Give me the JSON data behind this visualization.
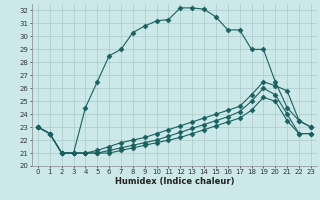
{
  "xlabel": "Humidex (Indice chaleur)",
  "bg_color": "#cce8e8",
  "grid_color": "#aacccc",
  "line_color": "#1a6060",
  "xlim": [
    -0.5,
    23.5
  ],
  "ylim": [
    20,
    32.5
  ],
  "xticks": [
    0,
    1,
    2,
    3,
    4,
    5,
    6,
    7,
    8,
    9,
    10,
    11,
    12,
    13,
    14,
    15,
    16,
    17,
    18,
    19,
    20,
    21,
    22,
    23
  ],
  "yticks": [
    20,
    21,
    22,
    23,
    24,
    25,
    26,
    27,
    28,
    29,
    30,
    31,
    32
  ],
  "series1_x": [
    0,
    1,
    2,
    3,
    4,
    5,
    6,
    7,
    8,
    9,
    10,
    11,
    12,
    13,
    14,
    15,
    16,
    17,
    18,
    19,
    20,
    21,
    22,
    23
  ],
  "series1_y": [
    23.0,
    22.5,
    21.0,
    21.0,
    24.5,
    26.5,
    28.5,
    29.0,
    30.3,
    30.8,
    31.2,
    31.3,
    32.2,
    32.2,
    32.1,
    31.5,
    30.5,
    30.5,
    29.0,
    29.0,
    26.5,
    24.5,
    23.5,
    23.0
  ],
  "series2_x": [
    0,
    1,
    2,
    3,
    4,
    5,
    6,
    7,
    8,
    9,
    10,
    11,
    12,
    13,
    14,
    15,
    16,
    17,
    18,
    19,
    20,
    21,
    22,
    23
  ],
  "series2_y": [
    23.0,
    22.5,
    21.0,
    21.0,
    21.0,
    21.2,
    21.5,
    21.8,
    22.0,
    22.2,
    22.5,
    22.8,
    23.1,
    23.4,
    23.7,
    24.0,
    24.3,
    24.6,
    25.5,
    26.5,
    26.2,
    25.8,
    23.5,
    23.0
  ],
  "series3_x": [
    0,
    1,
    2,
    3,
    4,
    5,
    6,
    7,
    8,
    9,
    10,
    11,
    12,
    13,
    14,
    15,
    16,
    17,
    18,
    19,
    20,
    21,
    22,
    23
  ],
  "series3_y": [
    23.0,
    22.5,
    21.0,
    21.0,
    21.0,
    21.0,
    21.2,
    21.4,
    21.6,
    21.8,
    22.0,
    22.3,
    22.6,
    22.9,
    23.2,
    23.5,
    23.8,
    24.2,
    25.0,
    26.0,
    25.5,
    24.0,
    22.5,
    22.5
  ],
  "series4_x": [
    0,
    1,
    2,
    3,
    4,
    5,
    6,
    7,
    8,
    9,
    10,
    11,
    12,
    13,
    14,
    15,
    16,
    17,
    18,
    19,
    20,
    21,
    22,
    23
  ],
  "series4_y": [
    23.0,
    22.5,
    21.0,
    21.0,
    21.0,
    21.0,
    21.0,
    21.2,
    21.4,
    21.6,
    21.8,
    22.0,
    22.2,
    22.5,
    22.8,
    23.1,
    23.4,
    23.7,
    24.3,
    25.3,
    25.0,
    23.5,
    22.5,
    22.5
  ]
}
